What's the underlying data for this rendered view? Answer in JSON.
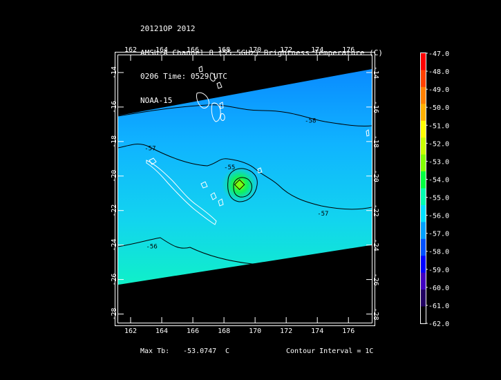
{
  "header": {
    "line1": "20121OP 2012",
    "line2": "AMSU-A Channel 8 (55.5GHz) Brightness Temperature (C)",
    "line3": "0206 Time: 0529 UTC",
    "line4": "NOAA-15"
  },
  "map": {
    "lon_range": [
      161.2,
      177.5
    ],
    "lat_range": [
      -28.5,
      -13
    ],
    "lon_ticks": [
      162,
      164,
      166,
      168,
      170,
      172,
      174,
      176
    ],
    "lat_ticks": [
      -14,
      -16,
      -18,
      -20,
      -22,
      -24,
      -26,
      -28
    ],
    "lon_tick_labels": [
      "162",
      "164",
      "166",
      "168",
      "170",
      "172",
      "174",
      "176"
    ],
    "lat_tick_labels": [
      "-14",
      "-16",
      "-18",
      "-20",
      "-22",
      "-24",
      "-26",
      "-28"
    ],
    "swath": {
      "top_edge": [
        [
          161.2,
          -16.5
        ],
        [
          177.5,
          -13.8
        ]
      ],
      "bottom_edge": [
        [
          161.2,
          -26.3
        ],
        [
          177.5,
          -24.0
        ]
      ]
    },
    "contours": [
      {
        "label": "-58",
        "label_pos": [
          173.2,
          -16.9
        ]
      },
      {
        "label": "-57",
        "label_pos": [
          162.9,
          -18.5
        ]
      },
      {
        "label": "-56",
        "label_pos": [
          163.0,
          -24.2
        ]
      },
      {
        "label": "-57",
        "label_pos": [
          174.0,
          -22.3
        ]
      },
      {
        "label": "-55",
        "label_pos": [
          168.0,
          -19.6
        ]
      }
    ],
    "storm_center": [
      169.0,
      -20.5
    ]
  },
  "colorbar": {
    "labels": [
      "-47.0",
      "-48.0",
      "-49.0",
      "-50.0",
      "-51.0",
      "-52.0",
      "-53.0",
      "-54.0",
      "-55.0",
      "-56.0",
      "-57.0",
      "-58.0",
      "-59.0",
      "-60.0",
      "-61.0",
      "-62.0"
    ],
    "colors": [
      "#ff0000",
      "#ff4000",
      "#ff8000",
      "#ffb000",
      "#ffff00",
      "#c8ff00",
      "#80ff00",
      "#00ff40",
      "#00ffb0",
      "#00e0ff",
      "#00a0ff",
      "#0050ff",
      "#0000ff",
      "#4000c0",
      "#200060",
      "#000000"
    ]
  },
  "footer": {
    "max_tb_label": "Max Tb:",
    "max_tb_value": "-53.0747",
    "max_tb_unit": "C",
    "contour_interval": "Contour Interval = 1C"
  }
}
